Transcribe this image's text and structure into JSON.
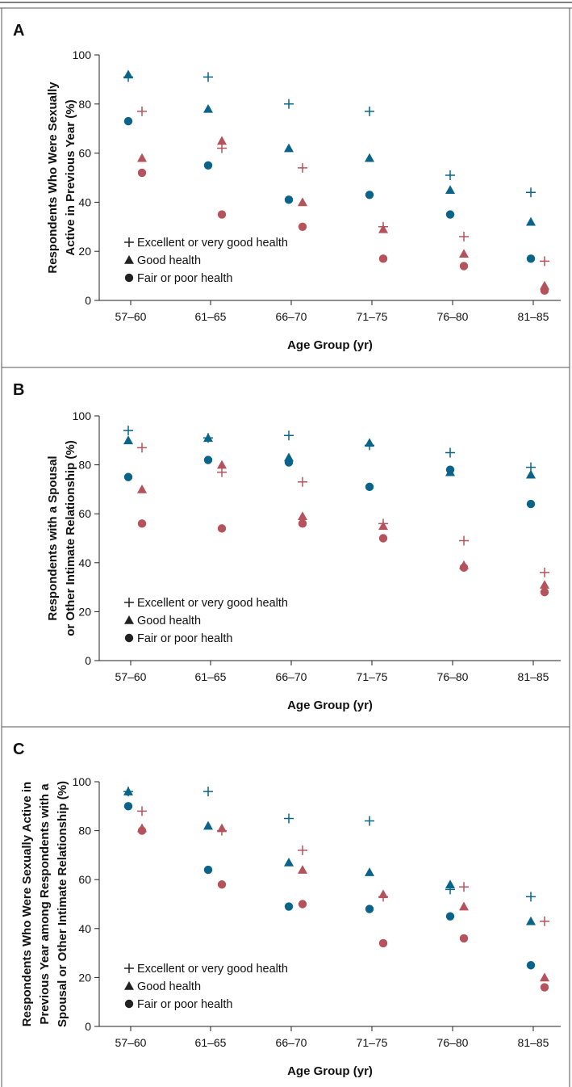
{
  "colors": {
    "men": "#0a6489",
    "women": "#b5535c",
    "frame": "#555555",
    "text": "#111111"
  },
  "legend_entries": [
    {
      "marker": "plus",
      "label": "Excellent or very good health"
    },
    {
      "marker": "triangle",
      "label": "Good health"
    },
    {
      "marker": "circle",
      "label": "Fair or poor health"
    }
  ],
  "chart_data": [
    {
      "panel": "A",
      "type": "scatter",
      "ylabel_lines": [
        "Respondents Who Were Sexually",
        "Active in Previous Year (%)"
      ],
      "xlabel": "Age Group (yr)",
      "categories": [
        "57–60",
        "61–65",
        "66–70",
        "71–75",
        "76–80",
        "81–85"
      ],
      "ylim": [
        0,
        100
      ],
      "yticks": [
        "0",
        "20",
        "40",
        "60",
        "80",
        "100"
      ],
      "legend_position": "bottom-left",
      "series": [
        {
          "group": "men",
          "marker": "plus",
          "values": [
            91,
            91,
            80,
            77,
            51,
            44
          ]
        },
        {
          "group": "men",
          "marker": "triangle",
          "values": [
            92,
            78,
            62,
            58,
            45,
            32
          ]
        },
        {
          "group": "men",
          "marker": "circle",
          "values": [
            73,
            55,
            41,
            43,
            35,
            17
          ]
        },
        {
          "group": "women",
          "marker": "plus",
          "values": [
            77,
            62,
            54,
            30,
            26,
            16
          ]
        },
        {
          "group": "women",
          "marker": "triangle",
          "values": [
            58,
            65,
            40,
            29,
            19,
            6
          ]
        },
        {
          "group": "women",
          "marker": "circle",
          "values": [
            52,
            35,
            30,
            17,
            14,
            4
          ]
        }
      ]
    },
    {
      "panel": "B",
      "type": "scatter",
      "ylabel_lines": [
        "Respondents with a Spousal",
        "or Other Intimate Relationship (%)"
      ],
      "xlabel": "Age Group (yr)",
      "categories": [
        "57–60",
        "61–65",
        "66–70",
        "71–75",
        "76–80",
        "81–85"
      ],
      "ylim": [
        0,
        100
      ],
      "yticks": [
        "0",
        "20",
        "40",
        "60",
        "80",
        "100"
      ],
      "legend_position": "bottom-left",
      "series": [
        {
          "group": "men",
          "marker": "plus",
          "values": [
            94,
            91,
            92,
            88,
            85,
            79
          ]
        },
        {
          "group": "men",
          "marker": "triangle",
          "values": [
            90,
            91,
            83,
            89,
            77,
            76
          ]
        },
        {
          "group": "men",
          "marker": "circle",
          "values": [
            75,
            82,
            81,
            71,
            78,
            64
          ]
        },
        {
          "group": "women",
          "marker": "plus",
          "values": [
            87,
            77,
            73,
            56,
            49,
            36
          ]
        },
        {
          "group": "women",
          "marker": "triangle",
          "values": [
            70,
            80,
            59,
            55,
            39,
            31
          ]
        },
        {
          "group": "women",
          "marker": "circle",
          "values": [
            56,
            54,
            56,
            50,
            38,
            28
          ]
        }
      ]
    },
    {
      "panel": "C",
      "type": "scatter",
      "ylabel_lines": [
        "Respondents Who Were Sexually Active in",
        "Previous Year among Respondents with a",
        "Spousal or Other Intimate Relationship (%)"
      ],
      "xlabel": "Age Group (yr)",
      "categories": [
        "57–60",
        "61–65",
        "66–70",
        "71–75",
        "76–80",
        "81–85"
      ],
      "ylim": [
        0,
        100
      ],
      "yticks": [
        "0",
        "20",
        "40",
        "60",
        "80",
        "100"
      ],
      "legend_position": "bottom-left",
      "series": [
        {
          "group": "men",
          "marker": "plus",
          "values": [
            96,
            96,
            85,
            84,
            56,
            53
          ]
        },
        {
          "group": "men",
          "marker": "triangle",
          "values": [
            96,
            82,
            67,
            63,
            58,
            43
          ]
        },
        {
          "group": "men",
          "marker": "circle",
          "values": [
            90,
            64,
            49,
            48,
            45,
            25
          ]
        },
        {
          "group": "women",
          "marker": "plus",
          "values": [
            88,
            80,
            72,
            53,
            57,
            43
          ]
        },
        {
          "group": "women",
          "marker": "triangle",
          "values": [
            81,
            81,
            64,
            54,
            49,
            20
          ]
        },
        {
          "group": "women",
          "marker": "circle",
          "values": [
            80,
            58,
            50,
            34,
            36,
            16
          ]
        }
      ]
    }
  ]
}
